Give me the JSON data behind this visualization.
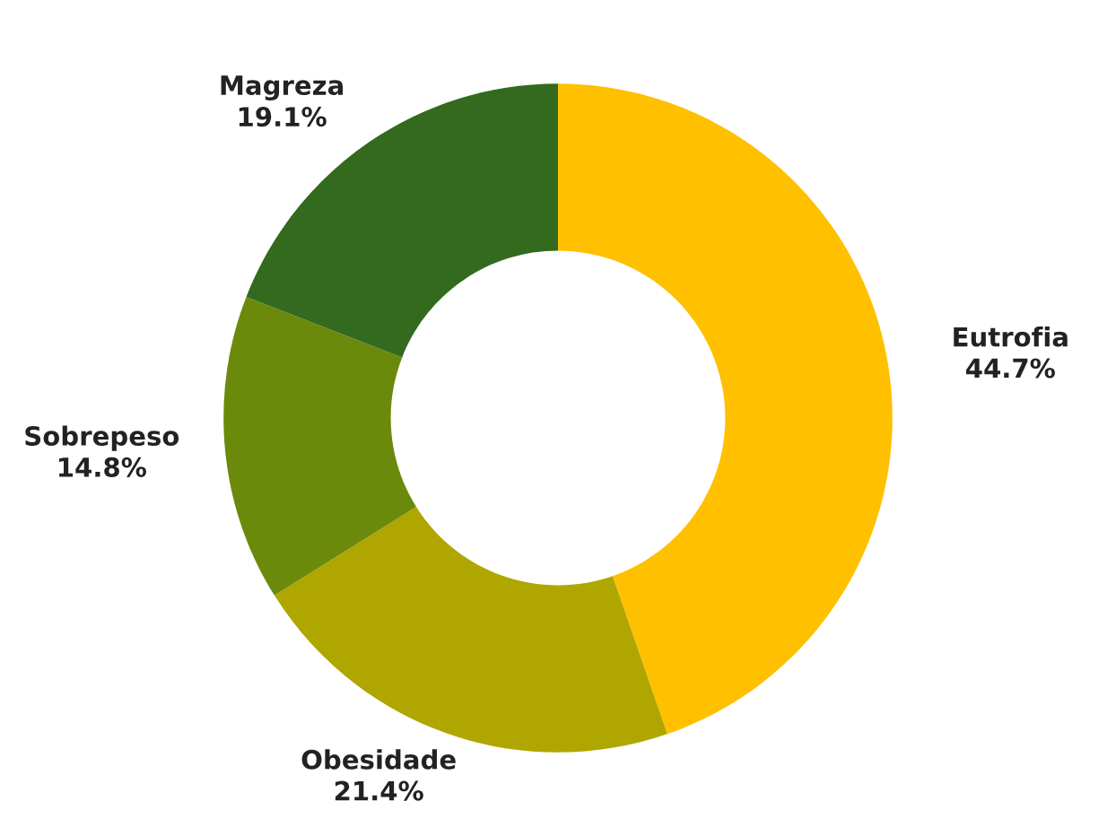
{
  "chart_data": {
    "type": "donut",
    "categories": [
      "Eutrofia",
      "Obesidade",
      "Sobrepeso",
      "Magreza"
    ],
    "values": [
      44.7,
      21.4,
      14.8,
      19.1
    ],
    "value_labels": [
      "44.7%",
      "21.4%",
      "14.8%",
      "19.1%"
    ],
    "colors": [
      "#ffc000",
      "#b0a600",
      "#6b8a0c",
      "#336a1e"
    ],
    "legend": false
  }
}
